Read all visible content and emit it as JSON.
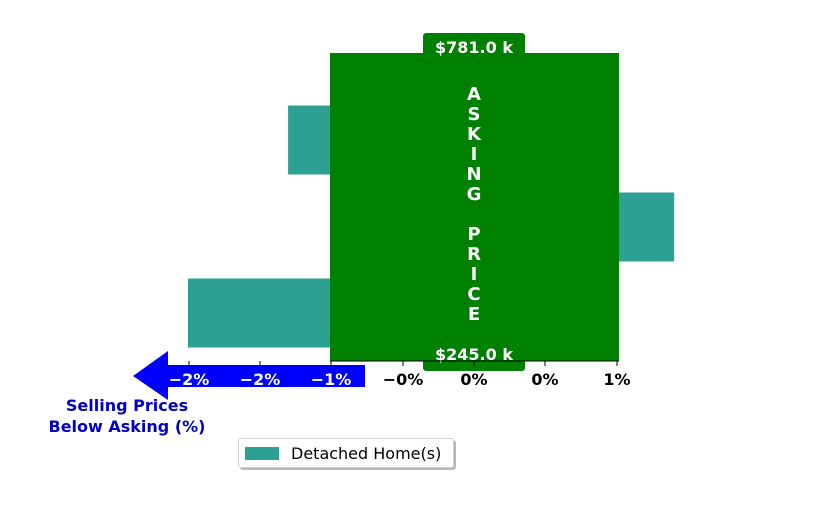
{
  "chart_data": {
    "type": "bar",
    "orientation": "horizontal",
    "series": [
      {
        "name": "Detached Home(s)",
        "values": [
          -1.3,
          1.4,
          -2.0
        ]
      }
    ],
    "xlim": [
      -2.5,
      1.5
    ],
    "tick_labels": [
      "−2%",
      "−2%",
      "−1%",
      "−0%",
      "0%",
      "0%",
      "1%"
    ],
    "asking_price_band": {
      "label": "ASKING PRICE",
      "top_price": "$781.0 k",
      "bottom_price": "$245.0 k"
    },
    "axis_note": [
      "Selling Prices",
      "Below Asking (%)"
    ],
    "legend": {
      "label": "Detached Home(s)",
      "placement": "bottom-center"
    },
    "grid": false
  },
  "colors": {
    "bar": "#2ca193",
    "band": "#008000",
    "arrow": "#0000ff",
    "note": "#0000cc"
  }
}
